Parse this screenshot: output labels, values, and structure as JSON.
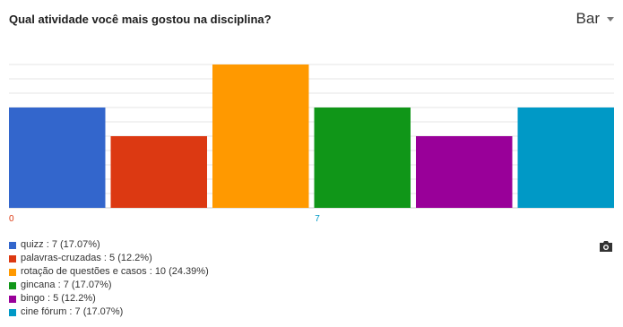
{
  "header": {
    "title": "Qual atividade você mais gostou na disciplina?",
    "chart_type_label": "Bar"
  },
  "chart_data": {
    "type": "bar",
    "categories": [
      "quizz",
      "palavras-cruzadas",
      "rotação de questões e casos",
      "gincana",
      "bingo",
      "cine fórum"
    ],
    "values": [
      7,
      5,
      10,
      7,
      5,
      7
    ],
    "colors": [
      "#3366cc",
      "#dc3912",
      "#ff9900",
      "#109618",
      "#990099",
      "#0099c6"
    ],
    "ylim": [
      0,
      10
    ],
    "grid": true,
    "x_tick_labels": [
      "0",
      "7"
    ],
    "x_tick_colors": [
      "#dc3912",
      "#0099c6"
    ],
    "legend_placement": "bottom"
  },
  "legend": [
    {
      "text": "quizz : 7 (17.07%)",
      "color": "#3366cc"
    },
    {
      "text": "palavras-cruzadas : 5 (12.2%)",
      "color": "#dc3912"
    },
    {
      "text": "rotação de questões e casos : 10 (24.39%)",
      "color": "#ff9900"
    },
    {
      "text": "gincana : 7 (17.07%)",
      "color": "#109618"
    },
    {
      "text": "bingo : 5 (12.2%)",
      "color": "#990099"
    },
    {
      "text": "cine fórum  : 7 (17.07%)",
      "color": "#0099c6"
    }
  ],
  "toolbar": {
    "camera_icon": "camera-icon"
  }
}
